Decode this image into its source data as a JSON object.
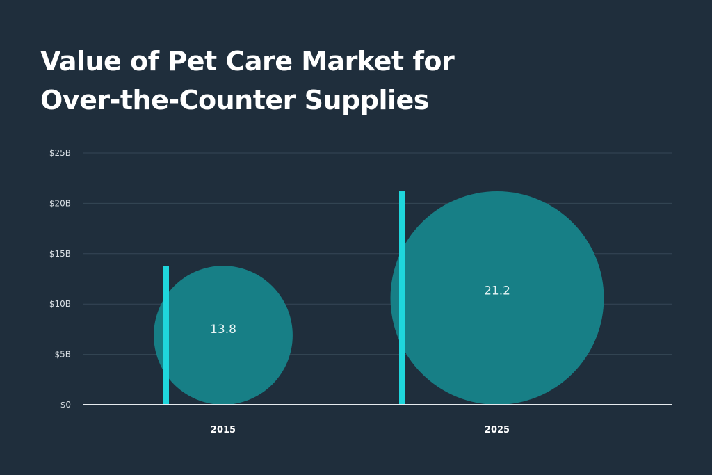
{
  "chart_data": {
    "type": "bar",
    "title_lines": [
      "Value of Pet Care Market for",
      "Over-the-Counter Supplies"
    ],
    "xlabel": "",
    "ylabel": "",
    "categories": [
      "2015",
      "2025"
    ],
    "values": [
      13.8,
      21.2
    ],
    "data_labels": [
      "13.8",
      "21.2"
    ],
    "yticks": [
      0,
      5,
      10,
      15,
      20,
      25
    ],
    "ytick_labels": [
      "$0",
      "$5B",
      "$10B",
      "$15B",
      "$20B",
      "$25B"
    ],
    "ylim": [
      0,
      25
    ],
    "grid": true,
    "legend": "none",
    "colors": {
      "background": "#1f2e3c",
      "bar": "#1fd6dc",
      "bubble": "#177f86",
      "grid": "#364756",
      "axis": "#e6ebef"
    }
  }
}
